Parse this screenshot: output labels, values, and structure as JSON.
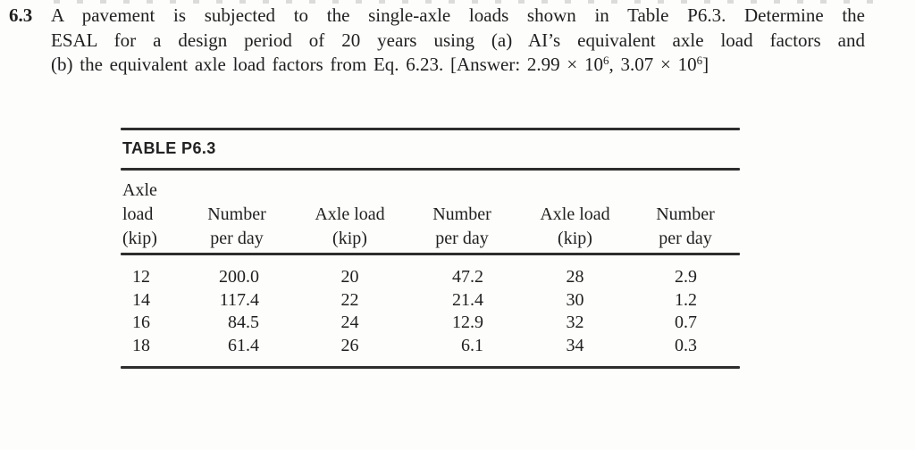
{
  "problem": {
    "number": "6.3",
    "line1": "A pavement is subjected to the single-axle loads shown in Table P6.3. Determine the",
    "line2": "ESAL for a design period of 20 years using (a) AI’s equivalent axle load factors and",
    "line3_prefix": "(b) the equivalent axle load factors from Eq. 6.23. [Answer: 2.99 × 10",
    "line3_sup1": "6",
    "line3_mid": ", 3.07 × 10",
    "line3_sup2": "6",
    "line3_suffix": "]"
  },
  "table": {
    "title": "TABLE P6.3",
    "columns": [
      {
        "label_lines": [
          "Axle",
          "load",
          "(kip)"
        ]
      },
      {
        "label_lines": [
          "Number",
          "per day"
        ]
      },
      {
        "label_lines": [
          "Axle load",
          "(kip)"
        ]
      },
      {
        "label_lines": [
          "Number",
          "per day"
        ]
      },
      {
        "label_lines": [
          "Axle load",
          "(kip)"
        ]
      },
      {
        "label_lines": [
          "Number",
          "per day"
        ]
      }
    ],
    "rows": [
      [
        "12",
        "200.0",
        "20",
        "47.2",
        "28",
        "2.9"
      ],
      [
        "14",
        "117.4",
        "22",
        "21.4",
        "30",
        "1.2"
      ],
      [
        "16",
        "84.5",
        "24",
        "12.9",
        "32",
        "0.7"
      ],
      [
        "18",
        "61.4",
        "26",
        "6.1",
        "34",
        "0.3"
      ]
    ]
  }
}
